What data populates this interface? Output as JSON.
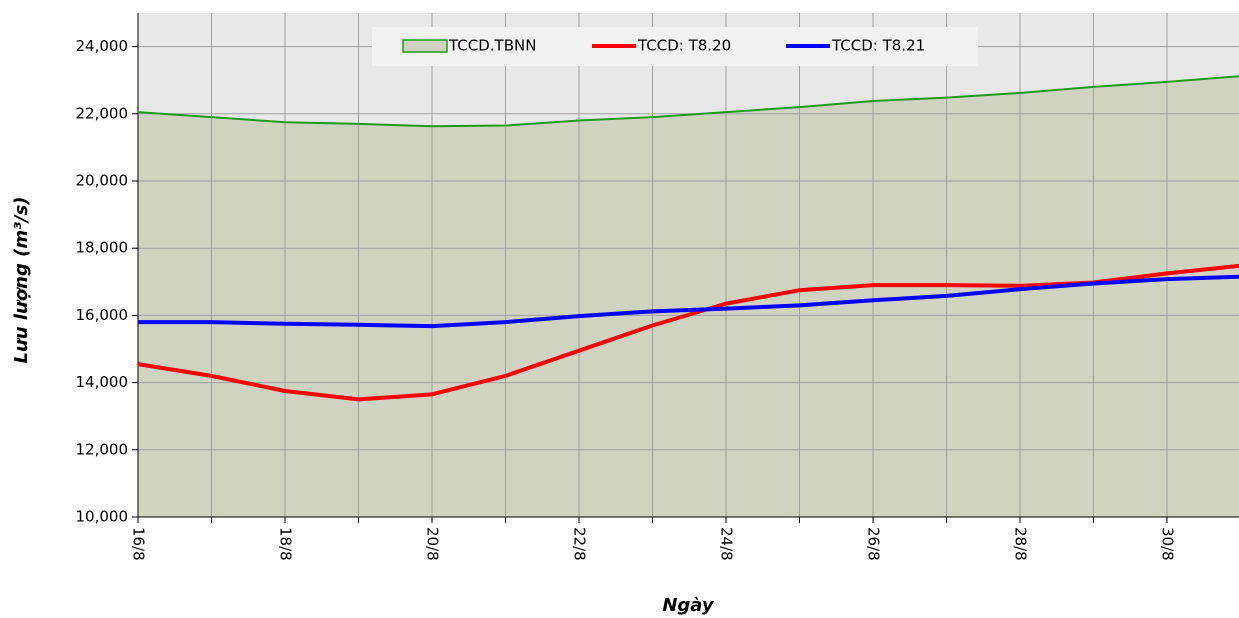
{
  "chart_data": {
    "type": "line",
    "x_label": "Ngày",
    "y_label": "Lưu lượng (m³/s)",
    "categories": [
      "16/8",
      null,
      "18/8",
      null,
      "20/8",
      null,
      "22/8",
      null,
      "24/8",
      null,
      "26/8",
      null,
      "28/8",
      null,
      "30/8",
      null
    ],
    "series": [
      {
        "name": "TCCD.TBNN",
        "color": "#1e9a1e",
        "fill": "#cfd3c0",
        "area": true,
        "values": [
          22050,
          21900,
          21750,
          21700,
          21630,
          21650,
          21800,
          21900,
          22050,
          22200,
          22380,
          22480,
          22620,
          22800,
          22950,
          23120
        ]
      },
      {
        "name": "TCCD: T8.20",
        "color": "#ff0000",
        "values": [
          14550,
          14200,
          13750,
          13500,
          13650,
          14200,
          14950,
          15700,
          16350,
          16750,
          16900,
          16900,
          16880,
          16980,
          17250,
          17480
        ]
      },
      {
        "name": "TCCD: T8.21",
        "color": "#0000ff",
        "values": [
          15800,
          15800,
          15750,
          15720,
          15680,
          15800,
          15980,
          16120,
          16200,
          16300,
          16450,
          16580,
          16780,
          16950,
          17080,
          17150
        ]
      }
    ],
    "ylim": [
      10000,
      25000
    ],
    "yticks": [
      {
        "value": 10000,
        "label": "10,000"
      },
      {
        "value": 12000,
        "label": "12,000"
      },
      {
        "value": 14000,
        "label": "14,000"
      },
      {
        "value": 16000,
        "label": "16,000"
      },
      {
        "value": 18000,
        "label": "18,000"
      },
      {
        "value": 20000,
        "label": "20,000"
      },
      {
        "value": 22000,
        "label": "22,000"
      },
      {
        "value": 24000,
        "label": "24,000"
      }
    ],
    "grid": true,
    "legend": "top"
  }
}
